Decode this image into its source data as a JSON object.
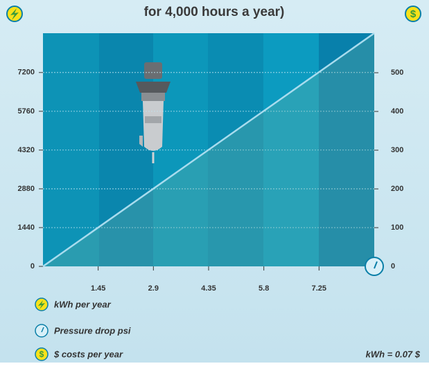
{
  "chart_data": {
    "type": "line",
    "title": "for 4,000 hours a year)",
    "x": [
      0,
      8.7
    ],
    "series": [
      {
        "color": "#a8dcee",
        "values": [
          0,
          8660
        ]
      }
    ],
    "xlim": [
      0,
      8.7
    ],
    "xticks": [
      1.45,
      2.9,
      4.35,
      5.8,
      7.25
    ],
    "ylim": [
      0,
      8660
    ],
    "yticks": [
      0,
      1440,
      2880,
      4320,
      5760,
      7200
    ],
    "y2lim": [
      0,
      602
    ],
    "y2ticks": [
      0,
      100,
      200,
      300,
      400,
      500
    ],
    "grid": true,
    "y_label": "kWh per year",
    "x_label": "Pressure drop psi",
    "y2_label": "$ costs per year",
    "note": "kWh = 0.07 $"
  }
}
